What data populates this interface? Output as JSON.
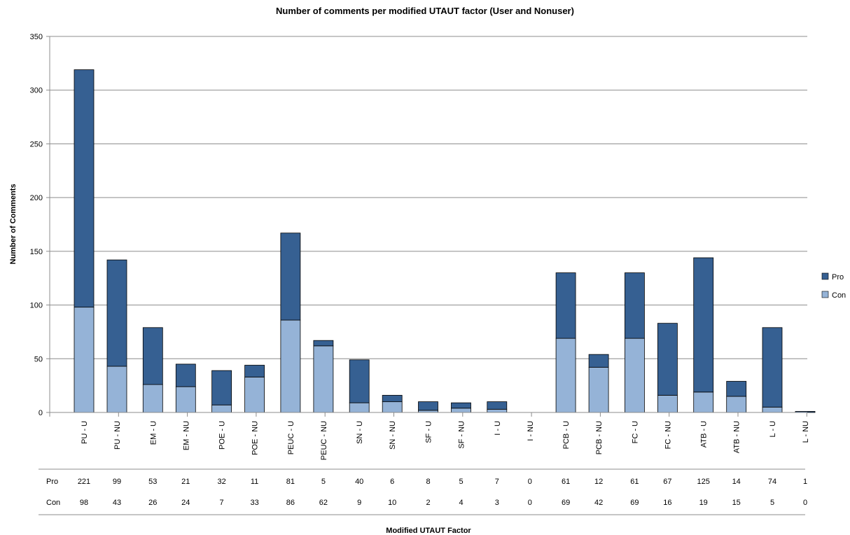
{
  "chart_data": {
    "type": "bar",
    "stacked": true,
    "title": "Number of comments per modified UTAUT factor (User and Nonuser)",
    "xlabel": "Modified UTAUT Factor",
    "ylabel": "Number of Comments",
    "ylim": [
      0,
      350
    ],
    "yticks": [
      0,
      50,
      100,
      150,
      200,
      250,
      300,
      350
    ],
    "grid": true,
    "legend_position": "right",
    "categories": [
      "PU - U",
      "PU - NU",
      "EM - U",
      "EM - NU",
      "POE - U",
      "POE - NU",
      "PEUC - U",
      "PEUC - NU",
      "SN - U",
      "SN - NU",
      "SF - U",
      "SF - NU",
      "I - U",
      "I - NU",
      "PCB - U",
      "PCB - NU",
      "FC - U",
      "FC - NU",
      "ATB - U",
      "ATB - NU",
      "L - U",
      "L - NU"
    ],
    "series": [
      {
        "name": "Con",
        "color": "#95b3d7",
        "values": [
          98,
          43,
          26,
          24,
          7,
          33,
          86,
          62,
          9,
          10,
          2,
          4,
          3,
          0,
          69,
          42,
          69,
          16,
          19,
          15,
          5,
          0
        ]
      },
      {
        "name": "Pro",
        "color": "#366092",
        "values": [
          221,
          99,
          53,
          21,
          32,
          11,
          81,
          5,
          40,
          6,
          8,
          5,
          7,
          0,
          61,
          12,
          61,
          67,
          125,
          14,
          74,
          1
        ]
      }
    ],
    "table_rows": [
      {
        "label": "Pro",
        "values": [
          221,
          99,
          53,
          21,
          32,
          11,
          81,
          5,
          40,
          6,
          8,
          5,
          7,
          0,
          61,
          12,
          61,
          67,
          125,
          14,
          74,
          1
        ]
      },
      {
        "label": "Con",
        "values": [
          98,
          43,
          26,
          24,
          7,
          33,
          86,
          62,
          9,
          10,
          2,
          4,
          3,
          0,
          69,
          42,
          69,
          16,
          19,
          15,
          5,
          0
        ]
      }
    ],
    "legend": [
      {
        "label": "Pro",
        "color": "#366092"
      },
      {
        "label": "Con",
        "color": "#95b3d7"
      }
    ]
  }
}
